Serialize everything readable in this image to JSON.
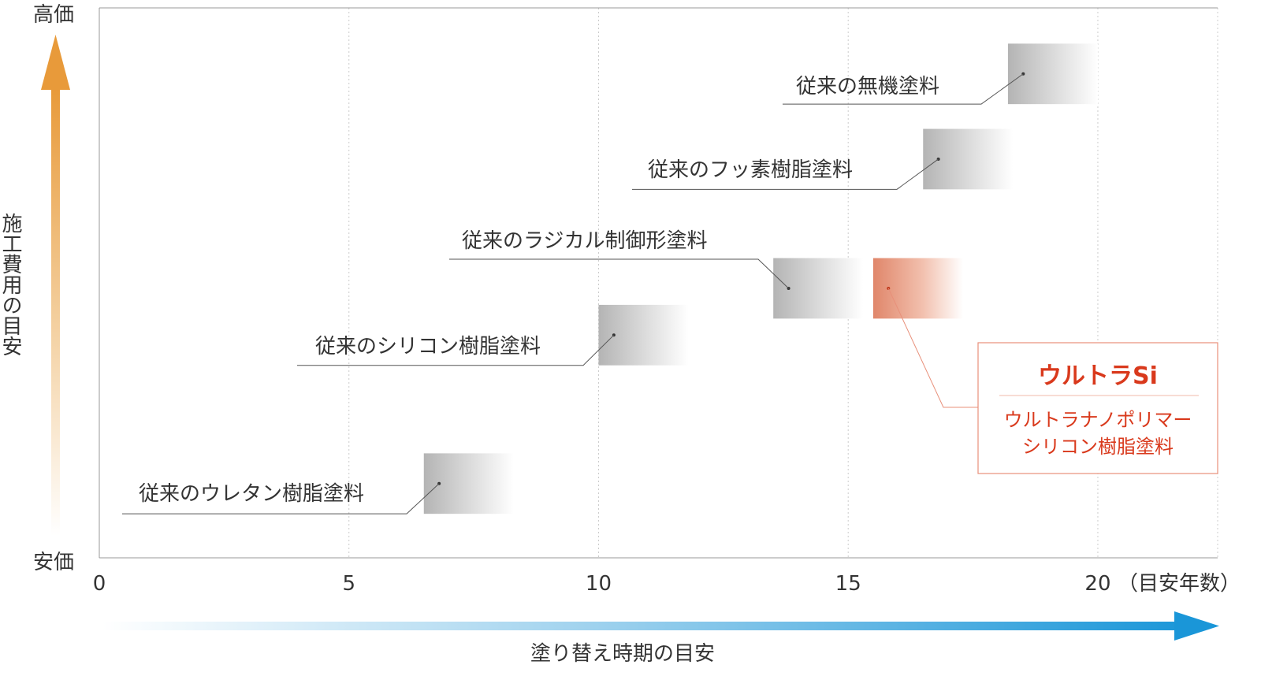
{
  "chart_data": {
    "type": "range-bar",
    "title": "",
    "y_axis": {
      "label": "施工費用の目安",
      "top_label": "高価",
      "bottom_label": "安価",
      "arrow_color": "#e8a040",
      "label_color": "#333333"
    },
    "x_axis": {
      "label": "塗り替え時期の目安",
      "tick_labels": [
        "0",
        "5",
        "10",
        "15",
        "20"
      ],
      "ticks": [
        0,
        5,
        10,
        15,
        20
      ],
      "unit_label": "（目安年数）",
      "range": [
        0,
        22.4
      ],
      "arrow_color": "#1a96d8"
    },
    "cost_scale": {
      "bottom": 0,
      "top": 100
    },
    "grid": true,
    "series": [
      {
        "label": "従来のウレタン樹脂塗料",
        "x_start": 6.5,
        "x_end": 8.3,
        "cost_min": 8,
        "cost_max": 19,
        "color": "#bbbbbb"
      },
      {
        "label": "従来のシリコン樹脂塗料",
        "x_start": 10.0,
        "x_end": 11.8,
        "cost_min": 35,
        "cost_max": 46,
        "color": "#bbbbbb"
      },
      {
        "label": "従来のラジカル制御形塗料",
        "x_start": 13.5,
        "x_end": 15.3,
        "cost_min": 43.5,
        "cost_max": 54.5,
        "color": "#bbbbbb"
      },
      {
        "label": "従来のフッ素樹脂塗料",
        "x_start": 16.5,
        "x_end": 18.3,
        "cost_min": 67,
        "cost_max": 78,
        "color": "#bbbbbb"
      },
      {
        "label": "従来の無機塗料",
        "x_start": 18.2,
        "x_end": 20.0,
        "cost_min": 82.5,
        "cost_max": 93.5,
        "color": "#bbbbbb"
      },
      {
        "label": "ウルトラSi",
        "x_start": 15.5,
        "x_end": 17.3,
        "cost_min": 43.5,
        "cost_max": 54.5,
        "color": "#e0866a"
      }
    ],
    "highlight": {
      "title": "ウルトラSi",
      "subtitle_line1": "ウルトラナノポリマー",
      "subtitle_line2": "シリコン樹脂塗料",
      "color": "#d9391c",
      "border_color": "#e8907a"
    }
  }
}
